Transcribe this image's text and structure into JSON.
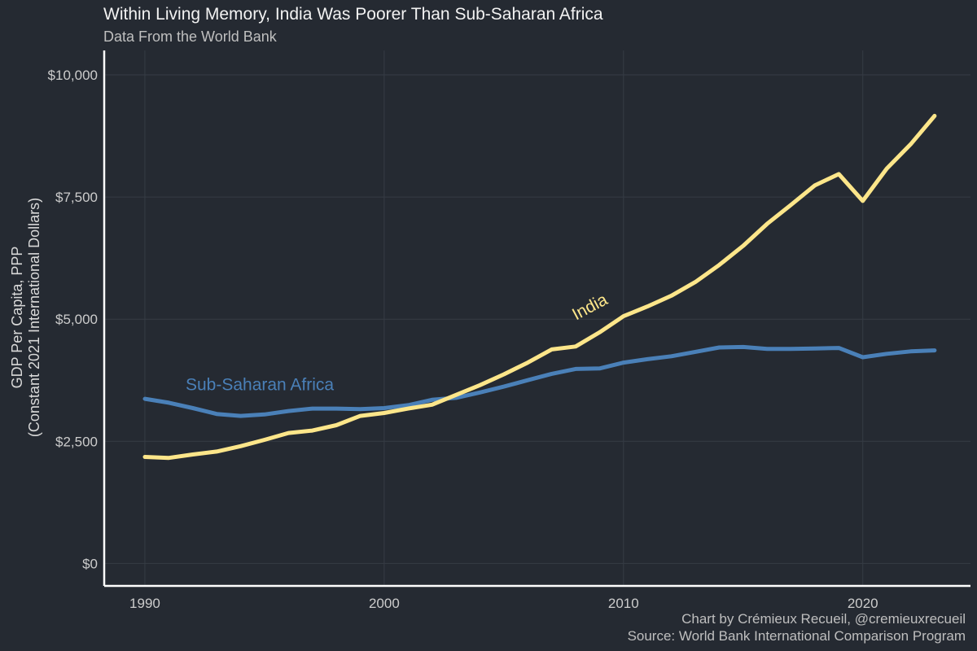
{
  "header": {
    "title": "Within Living Memory, India Was Poorer Than Sub-Saharan Africa",
    "subtitle": "Data From the World Bank"
  },
  "footer": {
    "credit": "Chart by Crémieux Recueil, @cremieuxrecueil",
    "source": "Source: World Bank International Comparison Program"
  },
  "colors": {
    "background": "#252a32",
    "grid": "#363c45",
    "axis": "#ffffff",
    "india": "#fde68a",
    "ssa": "#4a80b8"
  },
  "chart_data": {
    "type": "line",
    "ylabel_line1": "GDP Per Capita, PPP",
    "ylabel_line2": "(Constant 2021 International Dollars)",
    "xlim": [
      1988.3,
      2024.5
    ],
    "ylim": [
      -460,
      10500
    ],
    "x_ticks": [
      1990,
      2000,
      2010,
      2020
    ],
    "x_tick_labels": [
      "1990",
      "2000",
      "2010",
      "2020"
    ],
    "y_ticks": [
      0,
      2500,
      5000,
      7500,
      10000
    ],
    "y_tick_labels": [
      "$0",
      "$2,500",
      "$5,000",
      "$7,500",
      "$10,000"
    ],
    "grid": true,
    "x": [
      1990,
      1991,
      1992,
      1993,
      1994,
      1995,
      1996,
      1997,
      1998,
      1999,
      2000,
      2001,
      2002,
      2003,
      2004,
      2005,
      2006,
      2007,
      2008,
      2009,
      2010,
      2011,
      2012,
      2013,
      2014,
      2015,
      2016,
      2017,
      2018,
      2019,
      2020,
      2021,
      2022,
      2023
    ],
    "series": [
      {
        "name": "India",
        "color": "#fde68a",
        "values": [
          2180,
          2160,
          2230,
          2290,
          2400,
          2530,
          2670,
          2720,
          2830,
          3020,
          3080,
          3170,
          3250,
          3450,
          3650,
          3870,
          4110,
          4380,
          4440,
          4730,
          5060,
          5260,
          5480,
          5760,
          6110,
          6500,
          6950,
          7340,
          7740,
          7970,
          7420,
          8080,
          8580,
          9160
        ]
      },
      {
        "name": "Sub-Saharan Africa",
        "color": "#4a80b8",
        "values": [
          3370,
          3290,
          3180,
          3060,
          3020,
          3050,
          3120,
          3170,
          3170,
          3160,
          3180,
          3240,
          3350,
          3390,
          3500,
          3620,
          3750,
          3880,
          3980,
          3990,
          4110,
          4180,
          4240,
          4330,
          4420,
          4430,
          4390,
          4390,
          4400,
          4410,
          4220,
          4290,
          4340,
          4360
        ]
      }
    ],
    "annotations": [
      {
        "text": "India",
        "series": "India",
        "x": 2008.7,
        "y": 5150,
        "angle": -28,
        "color": "#fde68a"
      },
      {
        "text": "Sub-Saharan Africa",
        "series": "Sub-Saharan Africa",
        "x": 1994.8,
        "y": 3550,
        "angle": 0,
        "color": "#4a80b8"
      }
    ]
  }
}
